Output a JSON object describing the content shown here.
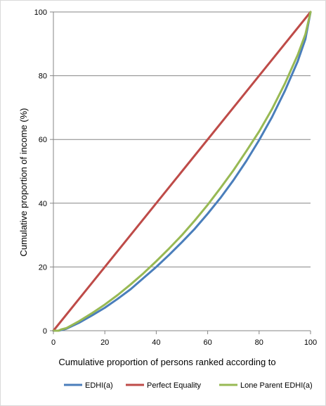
{
  "chart_data": {
    "type": "line",
    "title": "",
    "xlabel": "Cumulative proportion of persons ranked according to",
    "ylabel": "Cumulative proportion of income (%)",
    "xlim": [
      0,
      100
    ],
    "ylim": [
      0,
      100
    ],
    "xticks": [
      0,
      20,
      40,
      60,
      80,
      100
    ],
    "yticks": [
      0,
      20,
      40,
      60,
      80,
      100
    ],
    "grid": "horizontal",
    "legend": "bottom",
    "series": [
      {
        "name": "EDHI(a)",
        "color": "#4a7ebb",
        "x": [
          0,
          2,
          5,
          10,
          15,
          20,
          25,
          30,
          35,
          40,
          45,
          50,
          55,
          60,
          65,
          70,
          75,
          80,
          85,
          90,
          95,
          98,
          100
        ],
        "y": [
          0,
          0,
          0.6,
          2.5,
          4.8,
          7.2,
          10,
          13,
          16.5,
          20,
          23.8,
          27.8,
          32,
          36.7,
          41.7,
          47.2,
          53.2,
          59.8,
          67,
          75.2,
          84.5,
          91.5,
          100
        ]
      },
      {
        "name": "Perfect Equality",
        "color": "#be4b48",
        "x": [
          0,
          100
        ],
        "y": [
          0,
          100
        ]
      },
      {
        "name": "Lone Parent EDHI(a)",
        "color": "#98b954",
        "x": [
          0,
          2,
          3,
          5,
          10,
          15,
          20,
          25,
          30,
          35,
          40,
          45,
          50,
          55,
          60,
          65,
          70,
          75,
          80,
          85,
          90,
          95,
          98,
          100
        ],
        "y": [
          0,
          0,
          0.4,
          0.8,
          3,
          5.5,
          8.2,
          11.2,
          14.5,
          18,
          21.8,
          25.8,
          30,
          34.6,
          39.5,
          44.8,
          50.3,
          56.3,
          62.5,
          69.5,
          77.5,
          86.5,
          93,
          100
        ]
      }
    ]
  }
}
